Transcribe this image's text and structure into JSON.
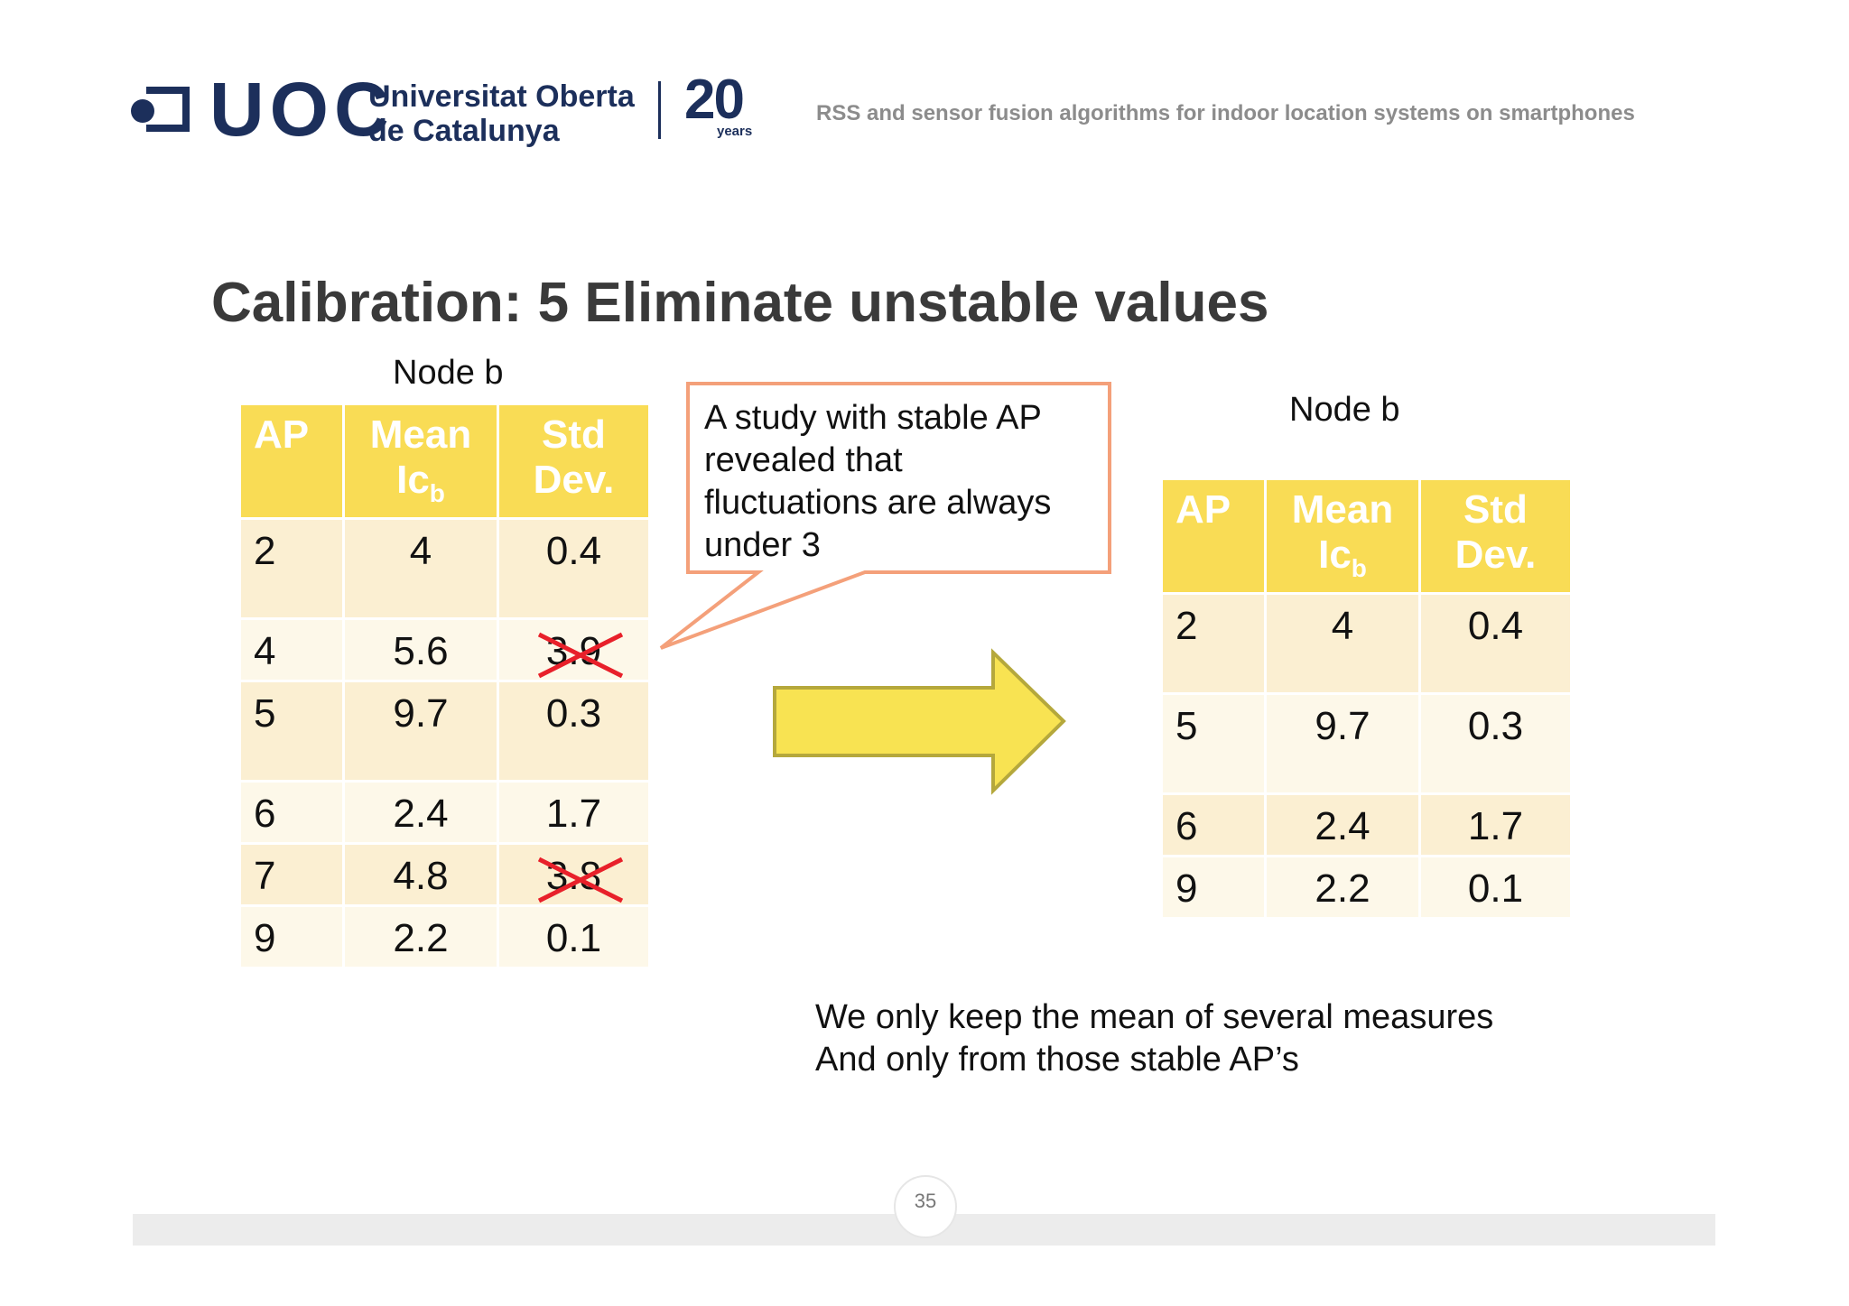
{
  "header": {
    "logo_text": "UOC",
    "university_line1": "Universitat Oberta",
    "university_line2": "de Catalunya",
    "anniversary_number": "20",
    "anniversary_label": "years",
    "presentation_title": "RSS and sensor fusion algorithms for indoor location systems on smartphones",
    "brand_color": "#1c2f5b"
  },
  "slide": {
    "title": "Calibration: 5 Eliminate unstable values",
    "page_number": "35"
  },
  "left_table": {
    "caption": "Node b",
    "headers": {
      "ap": "AP",
      "mean": "Mean",
      "mean_sub_base": "Ic",
      "mean_sub": "b",
      "std_line1": "Std",
      "std_line2": "Dev."
    },
    "rows": [
      {
        "ap": "2",
        "mean": "4",
        "std": "0.4",
        "struck": false
      },
      {
        "ap": "4",
        "mean": "5.6",
        "std": "3.9",
        "struck": true
      },
      {
        "ap": "5",
        "mean": "9.7",
        "std": "0.3",
        "struck": false
      },
      {
        "ap": "6",
        "mean": "2.4",
        "std": "1.7",
        "struck": false
      },
      {
        "ap": "7",
        "mean": "4.8",
        "std": "3.8",
        "struck": true
      },
      {
        "ap": "9",
        "mean": "2.2",
        "std": "0.1",
        "struck": false
      }
    ]
  },
  "callout": {
    "text_line1": "A study with stable AP",
    "text_line2": "revealed that",
    "text_line3": "fluctuations are always",
    "text_line4": "under 3",
    "border_color": "#f4a07a"
  },
  "arrow": {
    "fill_color": "#f8e352",
    "stroke_color": "#b5a83c"
  },
  "right_table": {
    "caption": "Node b",
    "headers": {
      "ap": "AP",
      "mean": "Mean",
      "mean_sub_base": "Ic",
      "mean_sub": "b",
      "std_line1": "Std",
      "std_line2": "Dev."
    },
    "rows": [
      {
        "ap": "2",
        "mean": "4",
        "std": "0.4"
      },
      {
        "ap": "5",
        "mean": "9.7",
        "std": "0.3"
      },
      {
        "ap": "6",
        "mean": "2.4",
        "std": "1.7"
      },
      {
        "ap": "9",
        "mean": "2.2",
        "std": "0.1"
      }
    ]
  },
  "note": {
    "line1": "We only keep the mean of several measures",
    "line2": "And only from those stable AP’s"
  },
  "colors": {
    "header_fill": "#f9dc55",
    "strike_color": "#e8202a"
  }
}
